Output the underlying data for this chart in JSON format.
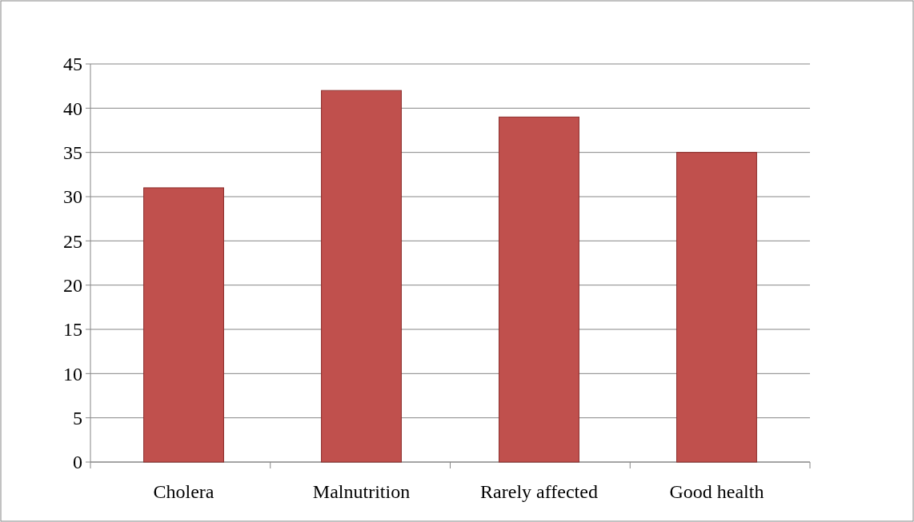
{
  "chart_data": {
    "type": "bar",
    "categories": [
      "Cholera",
      "Malnutrition",
      "Rarely affected",
      "Good health"
    ],
    "values": [
      31,
      42,
      39,
      35
    ],
    "color": "#c0504d",
    "ylim": [
      0,
      45
    ],
    "yticks": [
      0,
      5,
      10,
      15,
      20,
      25,
      30,
      35,
      40,
      45
    ],
    "grid": "y"
  }
}
